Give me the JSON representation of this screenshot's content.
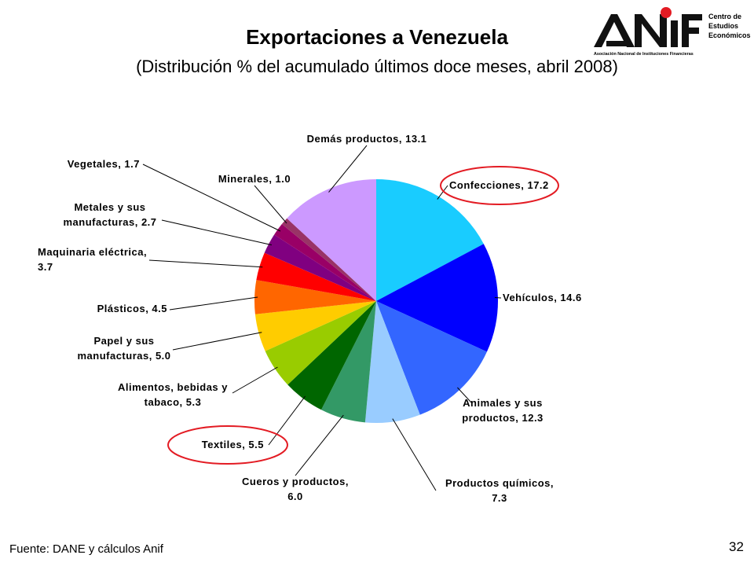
{
  "header": {
    "title": "Exportaciones a Venezuela",
    "subtitle": "(Distribución % del acumulado últimos doce meses, abril 2008)"
  },
  "logo": {
    "wordmark": "ANIF",
    "tagline": "Asociación Nacional de Instituciones Financieras",
    "unit_line1": "Centro de",
    "unit_line2": "Estudios",
    "unit_line3": "Económicos",
    "accent_color": "#e31b23"
  },
  "footer": {
    "source": "Fuente: DANE y cálculos Anif",
    "page_number": "32"
  },
  "chart_data": {
    "type": "pie",
    "title": "Exportaciones a Venezuela",
    "slices": [
      {
        "name": "Confecciones",
        "value": 17.2,
        "label": "Confecciones, 17.2",
        "color": "#19ccff",
        "highlighted": true
      },
      {
        "name": "Vehículos",
        "value": 14.6,
        "label": "Vehículos, 14.6",
        "color": "#0000ff",
        "highlighted": false
      },
      {
        "name": "Animales y sus productos",
        "value": 12.3,
        "label": "Animales y sus productos, 12.3",
        "color": "#3366ff",
        "highlighted": false
      },
      {
        "name": "Productos químicos",
        "value": 7.3,
        "label": "Productos químicos, 7.3",
        "color": "#99ccff",
        "highlighted": false
      },
      {
        "name": "Cueros y productos",
        "value": 6.0,
        "label": "Cueros y productos, 6.0",
        "color": "#339966",
        "highlighted": false
      },
      {
        "name": "Textiles",
        "value": 5.5,
        "label": "Textiles, 5.5",
        "color": "#006600",
        "highlighted": true
      },
      {
        "name": "Alimentos, bebidas y tabaco",
        "value": 5.3,
        "label": "Alimentos, bebidas y tabaco, 5.3",
        "color": "#99cc00",
        "highlighted": false
      },
      {
        "name": "Papel y sus manufacturas",
        "value": 5.0,
        "label": "Papel y sus manufacturas, 5.0",
        "color": "#ffcc00",
        "highlighted": false
      },
      {
        "name": "Plásticos",
        "value": 4.5,
        "label": "Plásticos, 4.5",
        "color": "#ff6600",
        "highlighted": false
      },
      {
        "name": "Maquinaria eléctrica",
        "value": 3.7,
        "label": "Maquinaria eléctrica, 3.7",
        "color": "#ff0000",
        "highlighted": false
      },
      {
        "name": "Metales y sus manufacturas",
        "value": 2.7,
        "label": "Metales y sus manufacturas, 2.7",
        "color": "#800080",
        "highlighted": false
      },
      {
        "name": "Vegetales",
        "value": 1.7,
        "label": "Vegetales, 1.7",
        "color": "#990066",
        "highlighted": false
      },
      {
        "name": "Minerales",
        "value": 1.0,
        "label": "Minerales, 1.0",
        "color": "#993366",
        "highlighted": false
      },
      {
        "name": "Demás productos",
        "value": 13.1,
        "label": "Demás productos, 13.1",
        "color": "#cc99ff",
        "highlighted": false
      }
    ],
    "highlight_color": "#e31b23"
  }
}
